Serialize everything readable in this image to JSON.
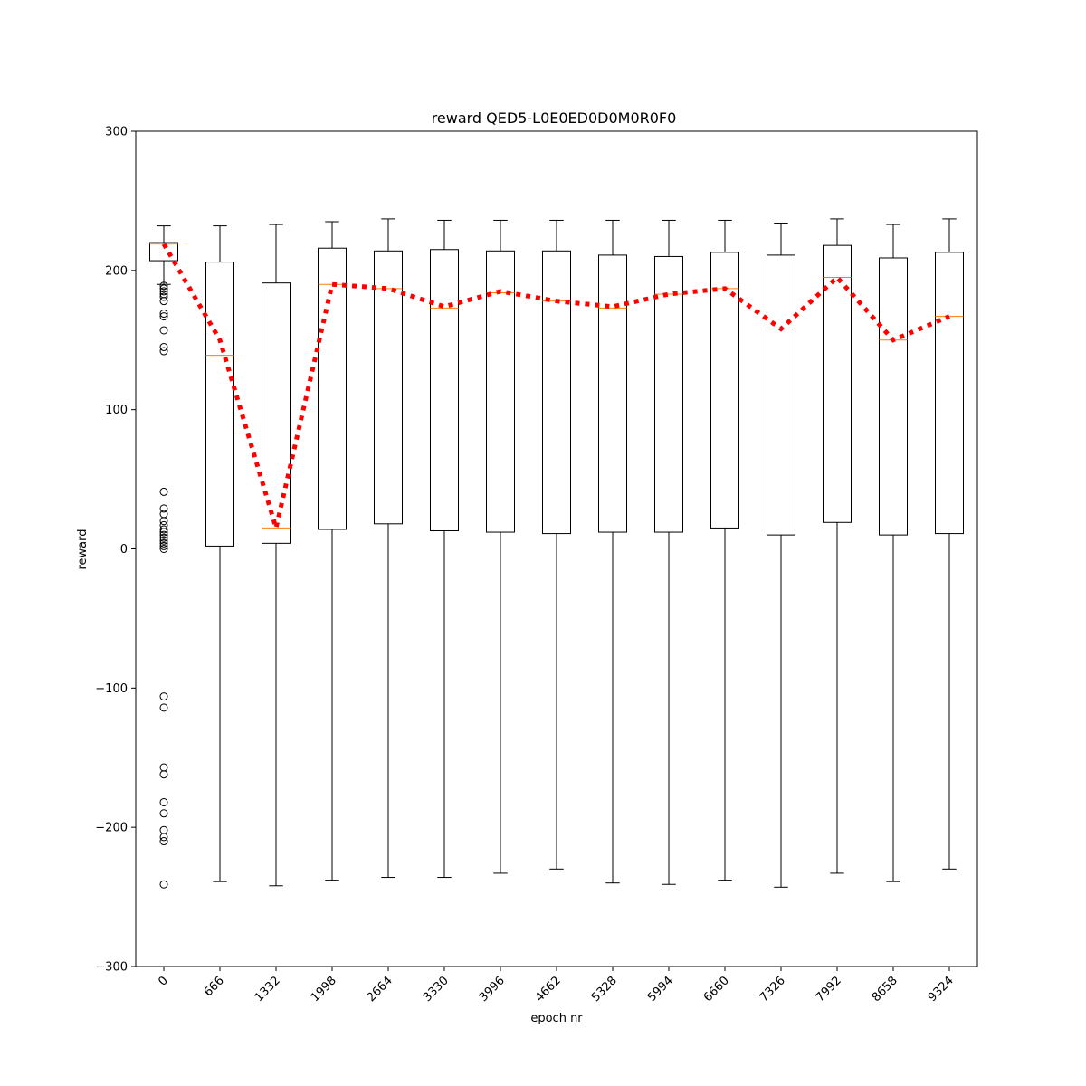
{
  "chart_data": {
    "type": "box",
    "title": "reward QED5-L0E0ED0D0M0R0F0",
    "xlabel": "epoch nr",
    "ylabel": "reward",
    "ylim": [
      -300,
      300
    ],
    "yticks": [
      -300,
      -200,
      -100,
      0,
      100,
      200,
      300
    ],
    "categories": [
      "0",
      "666",
      "1332",
      "1998",
      "2664",
      "3330",
      "3996",
      "4662",
      "5328",
      "5994",
      "6660",
      "7326",
      "7992",
      "8658",
      "9324"
    ],
    "boxes": [
      {
        "whisker_low": 190,
        "q1": 207,
        "median": 219,
        "q3": 220,
        "whisker_high": 232
      },
      {
        "whisker_low": -239,
        "q1": 2,
        "median": 139,
        "q3": 206,
        "whisker_high": 232
      },
      {
        "whisker_low": -242,
        "q1": 4,
        "median": 15,
        "q3": 191,
        "whisker_high": 233
      },
      {
        "whisker_low": -238,
        "q1": 14,
        "median": 190,
        "q3": 216,
        "whisker_high": 235
      },
      {
        "whisker_low": -236,
        "q1": 18,
        "median": 187,
        "q3": 214,
        "whisker_high": 237
      },
      {
        "whisker_low": -236,
        "q1": 13,
        "median": 173,
        "q3": 215,
        "whisker_high": 236
      },
      {
        "whisker_low": -233,
        "q1": 12,
        "median": 184,
        "q3": 214,
        "whisker_high": 236
      },
      {
        "whisker_low": -230,
        "q1": 11,
        "median": 178,
        "q3": 214,
        "whisker_high": 236
      },
      {
        "whisker_low": -240,
        "q1": 12,
        "median": 173,
        "q3": 211,
        "whisker_high": 236
      },
      {
        "whisker_low": -241,
        "q1": 12,
        "median": 183,
        "q3": 210,
        "whisker_high": 236
      },
      {
        "whisker_low": -238,
        "q1": 15,
        "median": 187,
        "q3": 213,
        "whisker_high": 236
      },
      {
        "whisker_low": -243,
        "q1": 10,
        "median": 158,
        "q3": 211,
        "whisker_high": 234
      },
      {
        "whisker_low": -233,
        "q1": 19,
        "median": 195,
        "q3": 218,
        "whisker_high": 237
      },
      {
        "whisker_low": -239,
        "q1": 10,
        "median": 150,
        "q3": 209,
        "whisker_high": 233
      },
      {
        "whisker_low": -230,
        "q1": 11,
        "median": 167,
        "q3": 213,
        "whisker_high": 237
      }
    ],
    "outliers": [
      {
        "category": "0",
        "values": [
          189,
          187,
          185,
          183,
          181,
          178,
          169,
          167,
          157,
          145,
          142,
          41,
          29,
          25,
          20,
          17,
          14,
          12,
          10,
          8,
          6,
          4,
          2,
          0,
          -106,
          -114,
          -157,
          -162,
          -182,
          -190,
          -202,
          -207,
          -210,
          -241
        ]
      }
    ],
    "mean_line": {
      "style": "dotted",
      "color": "#ff0000",
      "values": [
        219,
        150,
        15,
        190,
        187,
        174,
        185,
        178,
        174,
        183,
        187,
        158,
        195,
        150,
        167
      ]
    },
    "median_color": "#ff7f0e",
    "box_color": "#000000",
    "grid": false,
    "legend": "none"
  }
}
